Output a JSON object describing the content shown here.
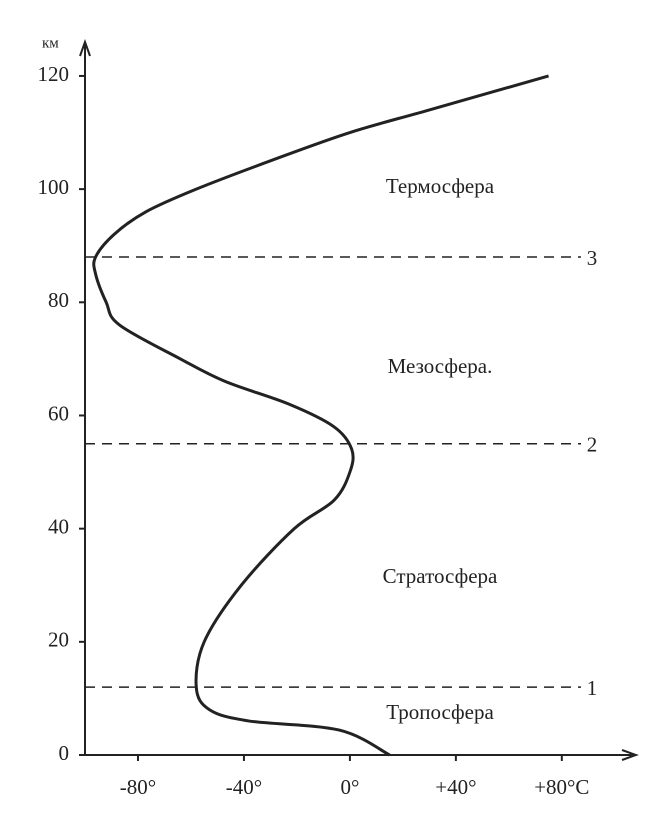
{
  "chart_data": {
    "type": "line",
    "y_label": "км",
    "x": [
      15,
      -4,
      -38,
      -53,
      -58,
      -55,
      -41,
      -21,
      -6,
      0,
      0.7,
      -6,
      -23,
      -47,
      -64,
      -87,
      -92,
      -96,
      -96,
      -89,
      -77,
      -58,
      -30,
      0,
      30,
      75
    ],
    "series": [
      {
        "color": "#222222",
        "values": [
          0,
          4.4,
          6,
          8,
          12,
          20,
          30,
          40,
          45,
          50,
          54,
          58,
          62,
          66,
          70,
          76,
          80,
          85,
          88,
          92,
          96,
          100,
          105,
          110,
          114,
          120
        ]
      }
    ],
    "xlim": [
      -100,
      108
    ],
    "ylim": [
      0,
      126
    ],
    "xticks": [
      {
        "value": -80,
        "label": "-80°"
      },
      {
        "value": -40,
        "label": "-40°"
      },
      {
        "value": 0,
        "label": "0°"
      },
      {
        "value": 40,
        "label": "+40°"
      },
      {
        "value": 80,
        "label": "+80°C"
      }
    ],
    "yticks": [
      0,
      20,
      40,
      60,
      80,
      100,
      120
    ],
    "levels": [
      {
        "value": 12,
        "label": "1"
      },
      {
        "value": 55,
        "label": "2"
      },
      {
        "value": 88,
        "label": "3"
      }
    ],
    "annotations": [
      "Термосфера",
      "Мезосфера.",
      "Стратосфера",
      "Тропосфера"
    ]
  }
}
